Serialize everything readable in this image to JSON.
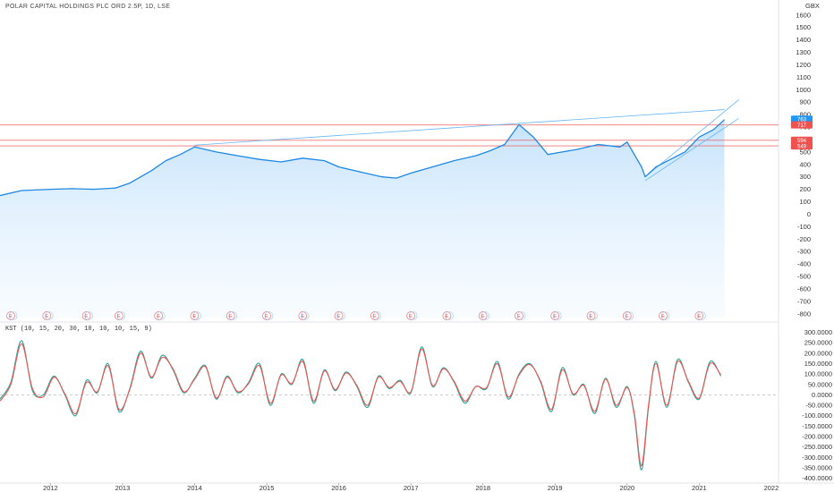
{
  "header": {
    "symbol_title": "POLAR CAPITAL HOLDINGS PLC ORD 2.5P, 1D, LSE",
    "currency": "GBX"
  },
  "indicator": {
    "label": "KST (10, 15, 20, 30, 10, 10, 10, 15, 9)"
  },
  "colors": {
    "price_line": "#1e88e5",
    "price_fill_top": "#bbdefb",
    "trendline": "#64b5f6",
    "hline": "#ef5350",
    "kst": "#26a69a",
    "signal": "#ef5350",
    "badge_blue": "#2196f3",
    "badge_red": "#ef5350"
  },
  "badges": [
    {
      "text": "763",
      "color": "blue"
    },
    {
      "text": "717",
      "color": "red"
    },
    {
      "text": "594",
      "color": "red"
    },
    {
      "text": "549",
      "color": "red"
    }
  ],
  "earnings_marker": "E",
  "chart_data": [
    {
      "type": "line",
      "name": "price",
      "x_labels": [
        "2012",
        "2013",
        "2014",
        "2015",
        "2016",
        "2017",
        "2018",
        "2019",
        "2020",
        "2021",
        "2022"
      ],
      "y_ticks": [
        1600,
        1500,
        1400,
        1300,
        1200,
        1100,
        1000,
        900,
        800,
        700,
        600,
        500,
        400,
        300,
        200,
        100,
        0,
        -100,
        -200,
        -300,
        -400,
        -500,
        -600,
        -700,
        -800
      ],
      "ylim": [
        -830,
        1620
      ],
      "horizontal_levels": [
        717,
        594,
        549
      ],
      "series": [
        {
          "x": [
            2011.3,
            2011.6,
            2012.0,
            2012.3,
            2012.6,
            2012.9,
            2013.1,
            2013.4,
            2013.6,
            2013.8,
            2014.0,
            2014.3,
            2014.6,
            2014.9,
            2015.2,
            2015.5,
            2015.8,
            2016.0,
            2016.3,
            2016.6,
            2016.8,
            2017.0,
            2017.3,
            2017.6,
            2017.9,
            2018.1,
            2018.3,
            2018.5,
            2018.7,
            2018.9,
            2019.1,
            2019.3,
            2019.6,
            2019.9,
            2020.0,
            2020.2,
            2020.25,
            2020.4,
            2020.6,
            2020.8,
            2021.0,
            2021.2,
            2021.35
          ],
          "values": [
            150,
            190,
            200,
            205,
            200,
            210,
            250,
            350,
            430,
            480,
            540,
            500,
            470,
            440,
            420,
            450,
            430,
            380,
            340,
            300,
            290,
            330,
            380,
            430,
            470,
            510,
            560,
            720,
            620,
            480,
            500,
            520,
            560,
            540,
            580,
            380,
            300,
            380,
            440,
            500,
            620,
            680,
            760
          ]
        }
      ],
      "trendlines": [
        {
          "x": [
            2014.0,
            2021.35
          ],
          "values": [
            555,
            840
          ]
        },
        {
          "x": [
            2020.25,
            2021.55
          ],
          "values": [
            300,
            920
          ]
        },
        {
          "x": [
            2020.25,
            2021.55
          ],
          "values": [
            270,
            770
          ]
        }
      ],
      "earnings_x": [
        2011.35,
        2011.85,
        2012.4,
        2012.85,
        2013.4,
        2013.9,
        2014.4,
        2014.9,
        2015.4,
        2015.9,
        2016.4,
        2016.9,
        2017.4,
        2017.9,
        2018.4,
        2018.9,
        2019.4,
        2019.9,
        2020.4,
        2020.9
      ]
    },
    {
      "type": "line",
      "name": "KST",
      "y_ticks": [
        300,
        250,
        200,
        150,
        100,
        50,
        0,
        -50,
        -100,
        -150,
        -200,
        -250,
        -300,
        -350,
        -400
      ],
      "y_tick_labels": [
        "300.0000",
        "250.0000",
        "200.0000",
        "150.0000",
        "100.0000",
        "50.0000",
        "0.0000",
        "-50.0000",
        "-100.0000",
        "-150.0000",
        "-200.0000",
        "-250.0000",
        "-300.0000",
        "-350.0000",
        "-400.0000"
      ],
      "ylim": [
        -410,
        315
      ],
      "series": [
        {
          "name": "KST",
          "x": [
            2011.3,
            2011.45,
            2011.6,
            2011.75,
            2011.9,
            2012.05,
            2012.2,
            2012.35,
            2012.5,
            2012.65,
            2012.8,
            2012.95,
            2013.1,
            2013.25,
            2013.4,
            2013.55,
            2013.7,
            2013.85,
            2014.0,
            2014.15,
            2014.3,
            2014.45,
            2014.6,
            2014.75,
            2014.9,
            2015.05,
            2015.2,
            2015.35,
            2015.5,
            2015.65,
            2015.8,
            2015.95,
            2016.1,
            2016.25,
            2016.4,
            2016.55,
            2016.7,
            2016.85,
            2017.0,
            2017.15,
            2017.3,
            2017.45,
            2017.6,
            2017.75,
            2017.9,
            2018.05,
            2018.2,
            2018.35,
            2018.5,
            2018.65,
            2018.8,
            2018.95,
            2019.1,
            2019.25,
            2019.4,
            2019.55,
            2019.7,
            2019.85,
            2020.0,
            2020.1,
            2020.2,
            2020.3,
            2020.4,
            2020.55,
            2020.7,
            2020.85,
            2021.0,
            2021.15,
            2021.3
          ],
          "values": [
            -20,
            60,
            260,
            20,
            0,
            90,
            0,
            -100,
            70,
            10,
            150,
            -80,
            30,
            210,
            80,
            190,
            120,
            10,
            80,
            140,
            -20,
            90,
            10,
            60,
            150,
            -50,
            100,
            50,
            170,
            -40,
            120,
            20,
            110,
            40,
            -60,
            90,
            30,
            70,
            10,
            230,
            40,
            130,
            60,
            -40,
            40,
            30,
            160,
            -20,
            100,
            150,
            60,
            -80,
            130,
            0,
            50,
            -90,
            80,
            -60,
            40,
            -100,
            -360,
            -50,
            160,
            -60,
            170,
            60,
            -20,
            160,
            90
          ]
        },
        {
          "name": "Signal",
          "x": [
            2011.3,
            2011.45,
            2011.6,
            2011.75,
            2011.9,
            2012.05,
            2012.2,
            2012.35,
            2012.5,
            2012.65,
            2012.8,
            2012.95,
            2013.1,
            2013.25,
            2013.4,
            2013.55,
            2013.7,
            2013.85,
            2014.0,
            2014.15,
            2014.3,
            2014.45,
            2014.6,
            2014.75,
            2014.9,
            2015.05,
            2015.2,
            2015.35,
            2015.5,
            2015.65,
            2015.8,
            2015.95,
            2016.1,
            2016.25,
            2016.4,
            2016.55,
            2016.7,
            2016.85,
            2017.0,
            2017.15,
            2017.3,
            2017.45,
            2017.6,
            2017.75,
            2017.9,
            2018.05,
            2018.2,
            2018.35,
            2018.5,
            2018.65,
            2018.8,
            2018.95,
            2019.1,
            2019.25,
            2019.4,
            2019.55,
            2019.7,
            2019.85,
            2020.0,
            2020.1,
            2020.2,
            2020.3,
            2020.4,
            2020.55,
            2020.7,
            2020.85,
            2021.0,
            2021.15,
            2021.3
          ],
          "values": [
            -30,
            50,
            245,
            30,
            -10,
            85,
            5,
            -90,
            60,
            15,
            140,
            -70,
            25,
            200,
            85,
            180,
            125,
            15,
            75,
            135,
            -15,
            85,
            15,
            55,
            140,
            -40,
            95,
            55,
            160,
            -30,
            115,
            25,
            105,
            45,
            -50,
            85,
            35,
            65,
            15,
            220,
            45,
            125,
            65,
            -30,
            40,
            35,
            150,
            -10,
            95,
            145,
            65,
            -70,
            120,
            5,
            45,
            -80,
            75,
            -50,
            35,
            -90,
            -340,
            -40,
            150,
            -50,
            160,
            65,
            -15,
            150,
            95
          ]
        }
      ]
    }
  ]
}
